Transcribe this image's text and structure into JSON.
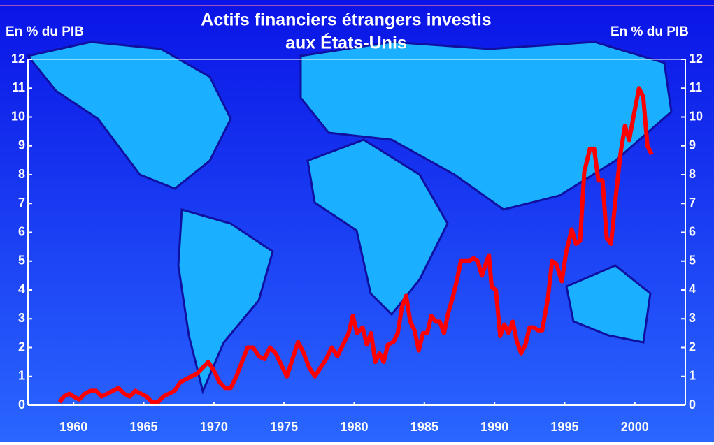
{
  "chart_data": {
    "type": "line",
    "title": [
      "Actifs financiers étrangers investis",
      "aux États-Unis"
    ],
    "y_label": "En % du PIB",
    "y2_label": "En % du PIB",
    "color": "#ff0000",
    "x": [
      1959.0,
      1959.3,
      1959.7,
      1960.0,
      1960.4,
      1960.8,
      1961.2,
      1961.6,
      1962.0,
      1962.4,
      1962.8,
      1963.2,
      1963.6,
      1964.0,
      1964.4,
      1964.8,
      1965.2,
      1965.6,
      1966.0,
      1966.4,
      1966.8,
      1967.2,
      1967.6,
      1968.0,
      1968.4,
      1968.8,
      1969.2,
      1969.6,
      1970.0,
      1970.4,
      1970.8,
      1971.2,
      1971.6,
      1972.0,
      1972.4,
      1972.8,
      1973.2,
      1973.6,
      1974.0,
      1974.4,
      1974.8,
      1975.2,
      1975.6,
      1976.0,
      1976.4,
      1976.8,
      1977.2,
      1977.6,
      1978.0,
      1978.4,
      1978.8,
      1979.2,
      1979.6,
      1979.9,
      1980.2,
      1980.6,
      1980.9,
      1981.2,
      1981.5,
      1981.8,
      1982.1,
      1982.4,
      1982.8,
      1983.1,
      1983.4,
      1983.7,
      1984.0,
      1984.3,
      1984.6,
      1984.9,
      1985.2,
      1985.5,
      1985.8,
      1986.1,
      1986.4,
      1986.7,
      1987.0,
      1987.3,
      1987.6,
      1987.9,
      1988.2,
      1988.5,
      1988.8,
      1989.1,
      1989.3,
      1989.6,
      1989.8,
      1990.1,
      1990.4,
      1990.7,
      1991.0,
      1991.3,
      1991.6,
      1991.9,
      1992.2,
      1992.5,
      1992.8,
      1993.1,
      1993.4,
      1993.8,
      1994.1,
      1994.4,
      1994.8,
      1995.1,
      1995.5,
      1995.8,
      1996.1,
      1996.4,
      1996.8,
      1997.1,
      1997.4,
      1997.7,
      1998.0,
      1998.3,
      1998.7,
      1999.0,
      1999.3,
      1999.6,
      1999.9,
      2000.3,
      2000.6,
      2000.9,
      2001.2
    ],
    "values": [
      0.1,
      0.3,
      0.4,
      0.3,
      0.2,
      0.4,
      0.5,
      0.5,
      0.3,
      0.4,
      0.5,
      0.6,
      0.4,
      0.3,
      0.5,
      0.4,
      0.3,
      0.1,
      0.1,
      0.3,
      0.4,
      0.5,
      0.8,
      0.9,
      1.0,
      1.1,
      1.3,
      1.5,
      1.2,
      0.8,
      0.6,
      0.6,
      1.0,
      1.5,
      2.0,
      2.0,
      1.7,
      1.6,
      2.0,
      1.8,
      1.4,
      1.0,
      1.6,
      2.2,
      1.8,
      1.3,
      1.0,
      1.3,
      1.6,
      2.0,
      1.7,
      2.1,
      2.5,
      3.1,
      2.5,
      2.7,
      2.1,
      2.5,
      1.5,
      1.8,
      1.5,
      2.1,
      2.2,
      2.5,
      3.4,
      3.8,
      2.9,
      2.6,
      1.9,
      2.5,
      2.5,
      3.1,
      2.9,
      2.9,
      2.5,
      3.2,
      3.7,
      4.3,
      5.0,
      5.0,
      5.0,
      5.1,
      5.0,
      4.5,
      4.8,
      5.2,
      4.1,
      4.0,
      2.4,
      2.8,
      2.5,
      2.9,
      2.2,
      1.8,
      2.1,
      2.7,
      2.7,
      2.6,
      2.6,
      3.7,
      5.0,
      4.9,
      4.3,
      5.3,
      6.1,
      5.6,
      5.7,
      8.1,
      8.9,
      8.9,
      7.8,
      7.8,
      5.8,
      5.6,
      7.5,
      8.8,
      9.7,
      9.2,
      10.0,
      11.0,
      10.7,
      9.0,
      8.7
    ],
    "xlim": [
      1956.75,
      2003.6
    ],
    "xticks": [
      1960,
      1965,
      1970,
      1975,
      1980,
      1985,
      1990,
      1995,
      2000
    ],
    "ylim": [
      0,
      12
    ],
    "yticks": [
      0,
      1,
      2,
      3,
      4,
      5,
      6,
      7,
      8,
      9,
      10,
      11,
      12
    ],
    "y2lim": [
      0,
      12
    ],
    "y2ticks": [
      0,
      1,
      2,
      3,
      4,
      5,
      6,
      7,
      8,
      9,
      10,
      11,
      12
    ]
  }
}
